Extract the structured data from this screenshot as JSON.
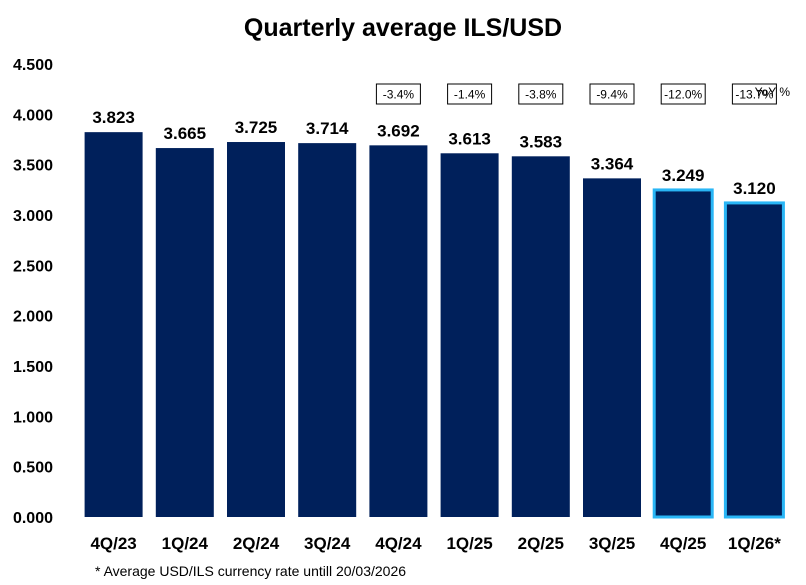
{
  "chart_data": {
    "type": "bar",
    "title": "Quarterly average ILS/USD",
    "categories": [
      "4Q/23",
      "1Q/24",
      "2Q/24",
      "3Q/24",
      "4Q/24",
      "1Q/25",
      "2Q/25",
      "3Q/25",
      "4Q/25",
      "1Q/26*"
    ],
    "values": [
      3.823,
      3.665,
      3.725,
      3.714,
      3.692,
      3.613,
      3.583,
      3.364,
      3.249,
      3.12
    ],
    "value_labels": [
      "3.823",
      "3.665",
      "3.725",
      "3.714",
      "3.692",
      "3.613",
      "3.583",
      "3.364",
      "3.249",
      "3.120"
    ],
    "yoy": [
      "",
      "",
      "",
      "",
      "-3.4%",
      "-1.4%",
      "-3.8%",
      "-9.4%",
      "-12.0%",
      "-13.7%"
    ],
    "yoy_label": "YoY %",
    "highlighted": [
      false,
      false,
      false,
      false,
      false,
      false,
      false,
      false,
      true,
      true
    ],
    "ylim": [
      0,
      4.5
    ],
    "yticks": [
      "0.000",
      "0.500",
      "1.000",
      "1.500",
      "2.000",
      "2.500",
      "3.000",
      "3.500",
      "4.000",
      "4.500"
    ],
    "grid": false,
    "xlabel": "",
    "ylabel": "",
    "footnote": "* Average USD/ILS currency rate untill 20/03/2026",
    "colors": {
      "bar": "#00205b",
      "highlight_border": "#29b6f6",
      "text": "#000000"
    }
  }
}
